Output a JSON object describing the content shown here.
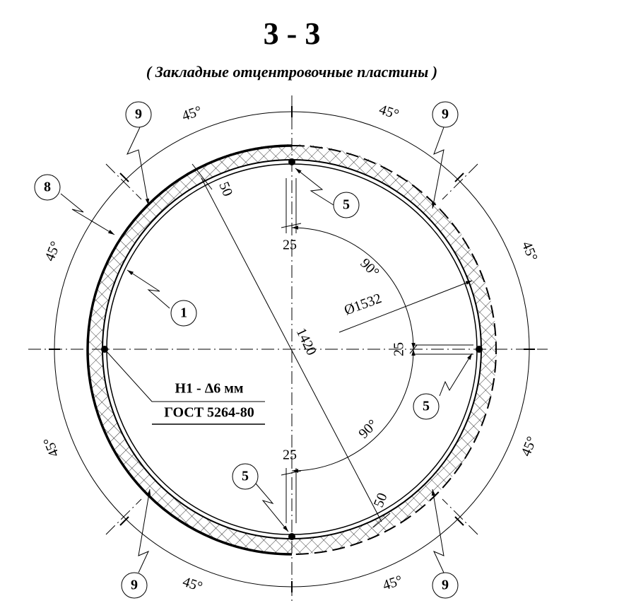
{
  "title": "3 - 3",
  "subtitle": "( Закладные отцентровочные пластины )",
  "callouts": [
    "9",
    "9",
    "8",
    "1",
    "5",
    "5",
    "5",
    "9",
    "9"
  ],
  "angles": [
    "45°",
    "45°",
    "45°",
    "45°",
    "45°",
    "45°",
    "45°",
    "45°",
    "90°",
    "90°"
  ],
  "dimensions": [
    "50",
    "50",
    "25",
    "25",
    "25",
    "1420",
    "Ø1532"
  ],
  "weld": {
    "symbol": "Н1 - Δ6 мм",
    "standard": "ГОСТ 5264-80"
  }
}
